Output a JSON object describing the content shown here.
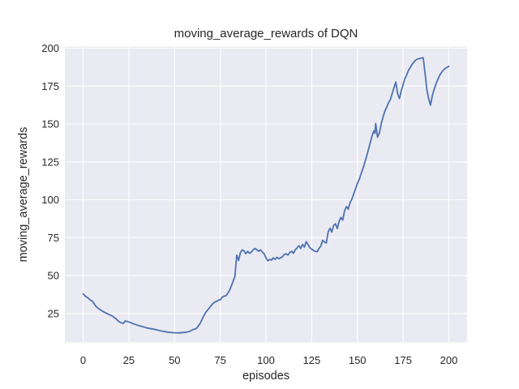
{
  "chart_data": {
    "type": "line",
    "title": "moving_average_rewards of DQN",
    "xlabel": "episodes",
    "ylabel": "moving_average_rewards",
    "xlim": [
      -10,
      210
    ],
    "ylim": [
      6,
      201
    ],
    "xticks": [
      0,
      25,
      50,
      75,
      100,
      125,
      150,
      175,
      200
    ],
    "yticks": [
      25,
      50,
      75,
      100,
      125,
      150,
      175,
      200
    ],
    "grid": true,
    "legend": false,
    "style": {
      "figure_background": "#ffffff",
      "axes_background": "#eaeaf2",
      "grid_color": "#ffffff",
      "text_color": "#262626",
      "line_color": "#4c72b0"
    },
    "series": [
      {
        "name": "moving_average_rewards",
        "color": "#4c72b0",
        "points": [
          [
            0,
            38.0
          ],
          [
            1,
            36.6
          ],
          [
            2,
            35.8
          ],
          [
            3,
            34.9
          ],
          [
            4,
            33.8
          ],
          [
            5,
            33.2
          ],
          [
            6,
            31.5
          ],
          [
            7,
            29.8
          ],
          [
            8,
            28.6
          ],
          [
            9,
            27.8
          ],
          [
            10,
            27.0
          ],
          [
            12,
            25.6
          ],
          [
            14,
            24.4
          ],
          [
            16,
            23.3
          ],
          [
            18,
            21.5
          ],
          [
            19,
            20.3
          ],
          [
            20,
            19.3
          ],
          [
            21,
            18.8
          ],
          [
            22,
            18.5
          ],
          [
            23,
            20.1
          ],
          [
            24,
            19.8
          ],
          [
            25,
            19.4
          ],
          [
            26,
            19.0
          ],
          [
            27,
            18.4
          ],
          [
            28,
            18.0
          ],
          [
            30,
            17.2
          ],
          [
            32,
            16.5
          ],
          [
            34,
            15.8
          ],
          [
            36,
            15.2
          ],
          [
            38,
            14.8
          ],
          [
            40,
            14.3
          ],
          [
            42,
            13.7
          ],
          [
            44,
            13.2
          ],
          [
            46,
            12.8
          ],
          [
            48,
            12.5
          ],
          [
            50,
            12.3
          ],
          [
            52,
            12.2
          ],
          [
            54,
            12.4
          ],
          [
            56,
            12.6
          ],
          [
            58,
            13.1
          ],
          [
            60,
            14.3
          ],
          [
            62,
            15.2
          ],
          [
            63,
            16.8
          ],
          [
            64,
            18.5
          ],
          [
            65,
            21.0
          ],
          [
            66,
            23.5
          ],
          [
            67,
            25.6
          ],
          [
            68,
            27.2
          ],
          [
            69,
            28.6
          ],
          [
            70,
            30.2
          ],
          [
            71,
            31.6
          ],
          [
            72,
            32.6
          ],
          [
            73,
            33.0
          ],
          [
            74,
            33.8
          ],
          [
            75,
            34.0
          ],
          [
            76,
            35.7
          ],
          [
            77,
            36.4
          ],
          [
            78,
            36.6
          ],
          [
            79,
            38.2
          ],
          [
            80,
            40.2
          ],
          [
            81,
            43.0
          ],
          [
            82,
            46.3
          ],
          [
            83,
            49.5
          ],
          [
            84,
            63.5
          ],
          [
            85,
            60.0
          ],
          [
            86,
            65.2
          ],
          [
            87,
            67.0
          ],
          [
            88,
            66.2
          ],
          [
            89,
            64.4
          ],
          [
            90,
            66.1
          ],
          [
            91,
            64.7
          ],
          [
            92,
            65.5
          ],
          [
            93,
            67.0
          ],
          [
            94,
            67.9
          ],
          [
            95,
            67.0
          ],
          [
            96,
            66.1
          ],
          [
            97,
            67.0
          ],
          [
            98,
            65.5
          ],
          [
            99,
            64.4
          ],
          [
            100,
            61.7
          ],
          [
            101,
            59.8
          ],
          [
            102,
            60.7
          ],
          [
            103,
            60.2
          ],
          [
            104,
            61.7
          ],
          [
            105,
            60.7
          ],
          [
            106,
            62.1
          ],
          [
            107,
            61.1
          ],
          [
            108,
            61.8
          ],
          [
            109,
            62.4
          ],
          [
            110,
            64.0
          ],
          [
            111,
            64.4
          ],
          [
            112,
            63.5
          ],
          [
            113,
            65.2
          ],
          [
            114,
            66.1
          ],
          [
            115,
            64.7
          ],
          [
            116,
            67.0
          ],
          [
            117,
            68.3
          ],
          [
            118,
            69.7
          ],
          [
            119,
            67.9
          ],
          [
            120,
            70.6
          ],
          [
            121,
            68.8
          ],
          [
            122,
            72.4
          ],
          [
            123,
            70.5
          ],
          [
            124,
            68.4
          ],
          [
            125,
            67.5
          ],
          [
            126,
            66.6
          ],
          [
            127,
            66.0
          ],
          [
            128,
            65.8
          ],
          [
            129,
            67.9
          ],
          [
            130,
            69.5
          ],
          [
            131,
            73.3
          ],
          [
            132,
            72.2
          ],
          [
            133,
            71.5
          ],
          [
            134,
            78.7
          ],
          [
            135,
            81.3
          ],
          [
            136,
            78.7
          ],
          [
            137,
            83.1
          ],
          [
            138,
            84.2
          ],
          [
            139,
            81.0
          ],
          [
            140,
            85.8
          ],
          [
            141,
            88.4
          ],
          [
            142,
            86.6
          ],
          [
            143,
            92.9
          ],
          [
            144,
            95.6
          ],
          [
            145,
            93.8
          ],
          [
            146,
            98.2
          ],
          [
            147,
            100.5
          ],
          [
            148,
            104.0
          ],
          [
            149,
            107.2
          ],
          [
            150,
            110.8
          ],
          [
            151,
            113.5
          ],
          [
            152,
            117.0
          ],
          [
            153,
            120.5
          ],
          [
            154,
            124.5
          ],
          [
            155,
            128.5
          ],
          [
            156,
            133.0
          ],
          [
            157,
            137.5
          ],
          [
            158,
            142.0
          ],
          [
            159,
            145.5
          ],
          [
            159.6,
            143.8
          ],
          [
            160,
            150.4
          ],
          [
            161,
            141.3
          ],
          [
            162,
            144.0
          ],
          [
            163,
            150.0
          ],
          [
            164,
            154.5
          ],
          [
            165,
            158.5
          ],
          [
            166,
            161.0
          ],
          [
            167,
            164.0
          ],
          [
            168,
            166.0
          ],
          [
            169,
            170.0
          ],
          [
            170,
            174.0
          ],
          [
            171,
            177.7
          ],
          [
            172,
            170.0
          ],
          [
            173,
            166.8
          ],
          [
            174,
            172.0
          ],
          [
            175,
            176.0
          ],
          [
            176,
            180.0
          ],
          [
            177,
            182.5
          ],
          [
            178,
            185.5
          ],
          [
            179,
            187.5
          ],
          [
            180,
            189.5
          ],
          [
            181,
            191.0
          ],
          [
            182,
            192.3
          ],
          [
            183,
            192.9
          ],
          [
            184,
            193.2
          ],
          [
            185,
            193.5
          ],
          [
            186,
            193.7
          ],
          [
            187,
            183.5
          ],
          [
            188,
            172.5
          ],
          [
            189,
            166.5
          ],
          [
            190,
            162.5
          ],
          [
            191,
            168.8
          ],
          [
            192,
            173.0
          ],
          [
            193,
            176.5
          ],
          [
            194,
            179.5
          ],
          [
            195,
            182.1
          ],
          [
            196,
            184.0
          ],
          [
            197,
            185.5
          ],
          [
            198,
            186.7
          ],
          [
            199,
            187.4
          ],
          [
            200,
            188.0
          ]
        ]
      }
    ]
  }
}
